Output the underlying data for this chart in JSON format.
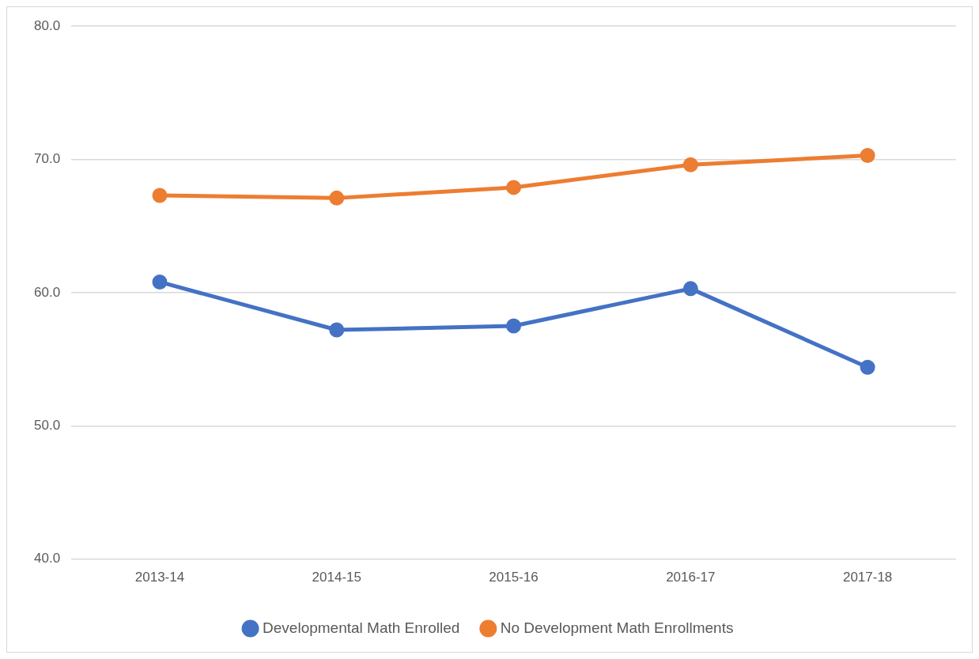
{
  "chart_data": {
    "type": "line",
    "categories": [
      "2013-14",
      "2014-15",
      "2015-16",
      "2016-17",
      "2017-18"
    ],
    "series": [
      {
        "name": "Developmental Math Enrolled",
        "color": "#4472c4",
        "values": [
          60.8,
          57.2,
          57.5,
          60.3,
          54.4
        ]
      },
      {
        "name": "No Development Math Enrollments",
        "color": "#ed7d31",
        "values": [
          67.3,
          67.1,
          67.9,
          69.6,
          70.3
        ]
      }
    ],
    "ylim": [
      40,
      80
    ],
    "yticks": [
      {
        "value": 40,
        "label": "40.0"
      },
      {
        "value": 50,
        "label": "50.0"
      },
      {
        "value": 60,
        "label": "60.0"
      },
      {
        "value": 70,
        "label": "70.0"
      },
      {
        "value": 80,
        "label": "80.0"
      }
    ],
    "grid": "y",
    "legend": "bottom",
    "marker": "circle",
    "line_style": "solid"
  }
}
